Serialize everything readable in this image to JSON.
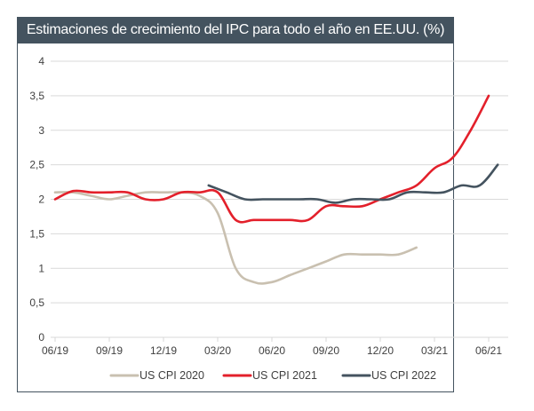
{
  "chart_data": {
    "type": "line",
    "title": "Estimaciones de crecimiento del IPC para todo el año en EE.UU. (%)",
    "xlabel": "",
    "ylabel": "",
    "ylim": [
      0,
      4
    ],
    "yticks": [
      0,
      0.5,
      1,
      1.5,
      2,
      2.5,
      3,
      3.5,
      4
    ],
    "ytick_labels": [
      "0",
      "0,5",
      "1",
      "1,5",
      "2",
      "2,5",
      "3",
      "3,5",
      "4"
    ],
    "x_months": [
      "06/19",
      "07/19",
      "08/19",
      "09/19",
      "10/19",
      "11/19",
      "12/19",
      "01/20",
      "02/20",
      "03/20",
      "04/20",
      "05/20",
      "06/20",
      "07/20",
      "08/20",
      "09/20",
      "10/20",
      "11/20",
      "12/20",
      "01/21",
      "02/21",
      "03/21",
      "04/21",
      "05/21",
      "06/21"
    ],
    "xtick_labels": [
      "06/19",
      "09/19",
      "12/19",
      "03/20",
      "06/20",
      "09/20",
      "12/20",
      "03/21",
      "06/21"
    ],
    "grid": "horizontal",
    "legend_position": "bottom",
    "series": [
      {
        "name": "US CPI 2020",
        "color": "#c9c0b0",
        "start_index": 0,
        "values": [
          2.1,
          2.1,
          2.05,
          2.0,
          2.05,
          2.1,
          2.1,
          2.1,
          2.05,
          1.8,
          1.0,
          0.8,
          0.8,
          0.9,
          1.0,
          1.1,
          1.2,
          1.2,
          1.2,
          1.2,
          1.3
        ]
      },
      {
        "name": "US CPI 2021",
        "color": "#e3202b",
        "start_index": 0,
        "values": [
          2.0,
          2.12,
          2.1,
          2.1,
          2.1,
          2.0,
          2.0,
          2.1,
          2.1,
          2.1,
          1.7,
          1.7,
          1.7,
          1.7,
          1.7,
          1.9,
          1.9,
          1.9,
          2.0,
          2.1,
          2.2,
          2.45,
          2.6,
          3.0,
          3.5
        ]
      },
      {
        "name": "US CPI 2022",
        "color": "#44535f",
        "start_index": 8.5,
        "values": [
          2.2,
          2.1,
          2.0,
          2.0,
          2.0,
          2.0,
          2.0,
          1.95,
          2.0,
          2.0,
          2.0,
          2.1,
          2.1,
          2.1,
          2.2,
          2.2,
          2.5
        ]
      }
    ]
  }
}
